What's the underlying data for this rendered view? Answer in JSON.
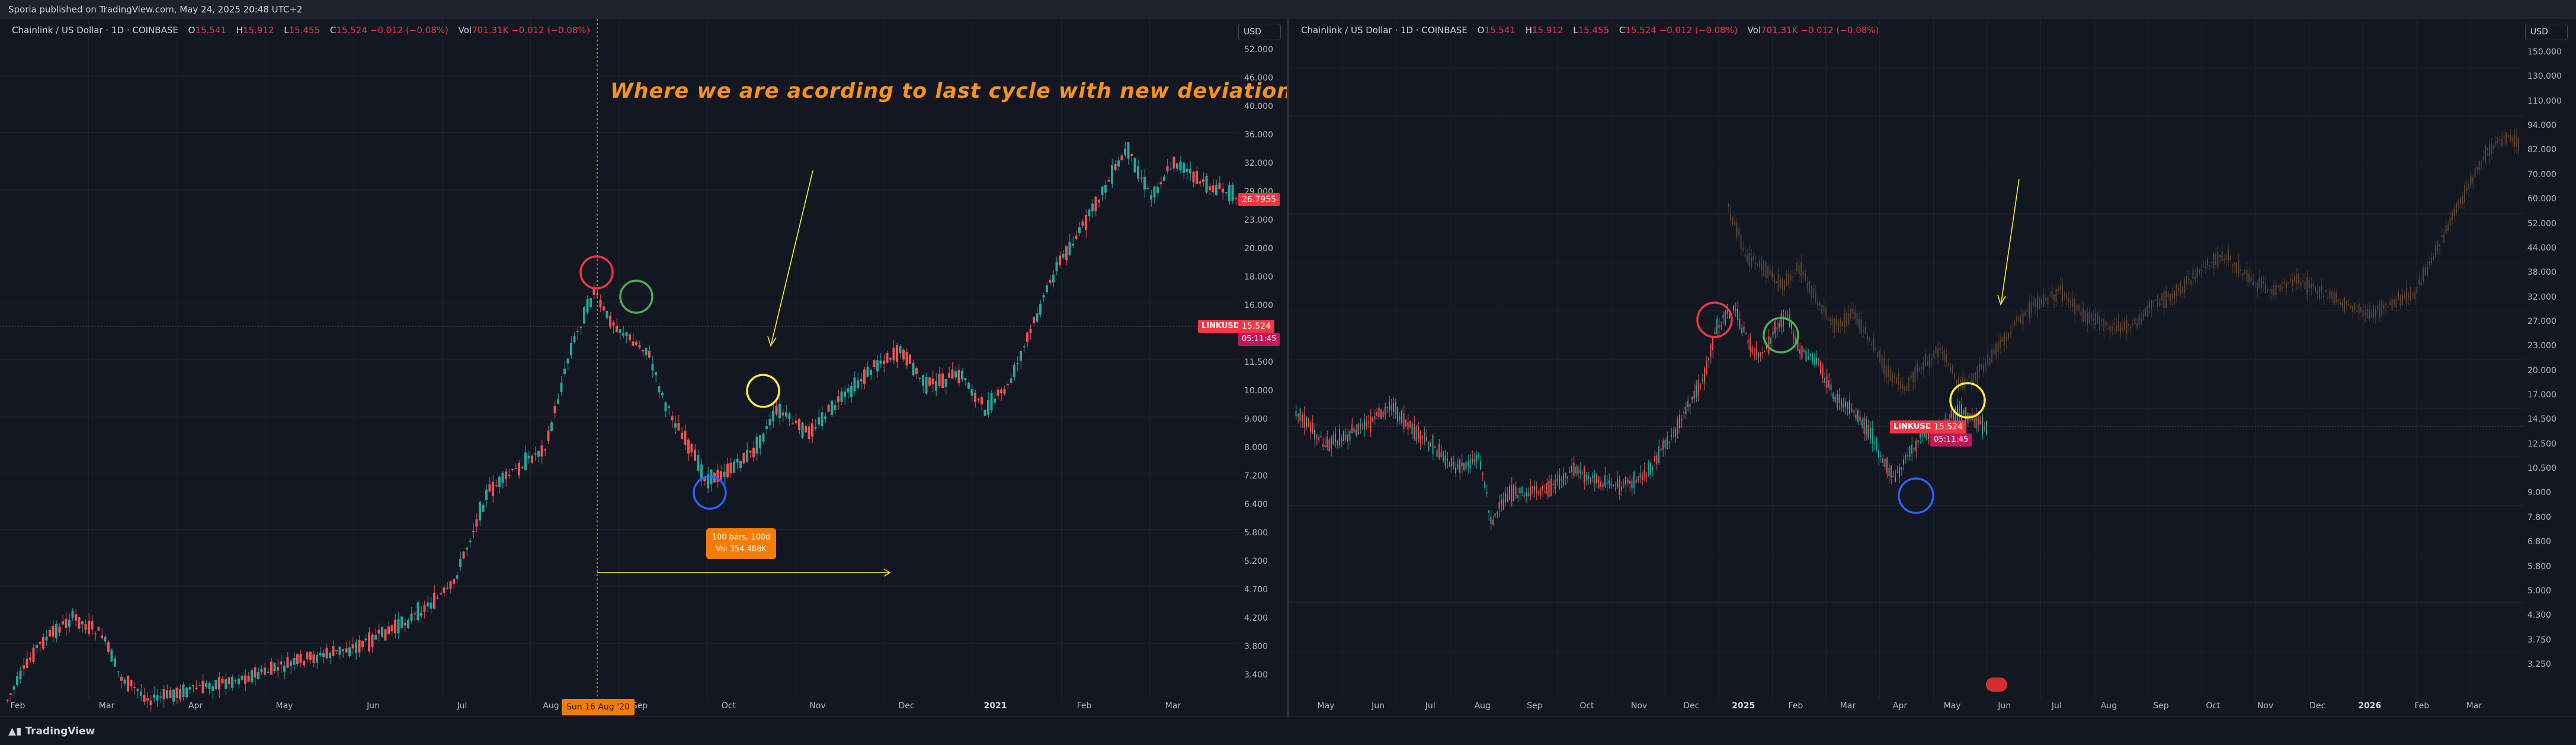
{
  "header": {
    "published_text": "Sporia published on TradingView.com, May 24, 2025 20:48 UTC+2"
  },
  "left_chart": {
    "symbol": "Chainlink / US Dollar · 1D · COINBASE",
    "ohlc": {
      "o_label": "O",
      "o": "15.541",
      "h_label": "H",
      "h": "15.912",
      "l_label": "L",
      "l": "15.455",
      "c_label": "C",
      "c": "15.524 −0.012 (−0.08%)",
      "vol_label": "Vol",
      "vol": "701.31K −0.012 (−0.08%)"
    },
    "currency": "USD",
    "y_ticks": [
      "52.000",
      "46.000",
      "40.000",
      "36.000",
      "32.000",
      "29.000",
      "23.000",
      "20.000",
      "18.000",
      "16.000",
      "13.000",
      "11.500",
      "10.000",
      "9.000",
      "8.000",
      "7.200",
      "6.400",
      "5.800",
      "5.200",
      "4.700",
      "4.200",
      "3.800",
      "3.400"
    ],
    "x_ticks": [
      "Feb",
      "Mar",
      "Apr",
      "May",
      "Jun",
      "Jul",
      "Aug",
      "Sep",
      "Oct",
      "Nov",
      "Dec",
      "2021",
      "Feb",
      "Mar"
    ],
    "annotation": "Where we are acording to last cycle with new deviation",
    "price_tag": "26.7955",
    "symbol_tag": "LINKUSD",
    "last_price": "15.524",
    "countdown": "05:11:45",
    "measure_line1": "100 bars, 100d",
    "measure_line2": "Vol 354.488K",
    "date_badge": "Sun 16 Aug '20",
    "circles": [
      {
        "color": "#f23645",
        "label": "red"
      },
      {
        "color": "#4caf50",
        "label": "green"
      },
      {
        "color": "#ffeb3b",
        "label": "yellow"
      },
      {
        "color": "#2962ff",
        "label": "blue"
      }
    ]
  },
  "right_chart": {
    "symbol": "Chainlink / US Dollar · 1D · COINBASE",
    "ohlc": {
      "o_label": "O",
      "o": "15.541",
      "h_label": "H",
      "h": "15.912",
      "l_label": "L",
      "l": "15.455",
      "c_label": "C",
      "c": "15.524 −0.012 (−0.08%)",
      "vol_label": "Vol",
      "vol": "701.31K −0.012 (−0.08%)"
    },
    "currency": "USD",
    "y_ticks": [
      "150.000",
      "130.000",
      "110.000",
      "94.000",
      "82.000",
      "70.000",
      "60.000",
      "52.000",
      "44.000",
      "38.000",
      "32.000",
      "27.000",
      "23.000",
      "20.000",
      "17.000",
      "14.500",
      "12.500",
      "10.500",
      "9.000",
      "7.800",
      "6.800",
      "5.800",
      "5.000",
      "4.300",
      "3.750",
      "3.250"
    ],
    "x_ticks": [
      "May",
      "Jun",
      "Jul",
      "Aug",
      "Sep",
      "Oct",
      "Nov",
      "Dec",
      "2025",
      "Feb",
      "Mar",
      "Apr",
      "May",
      "Jun",
      "Jul",
      "Aug",
      "Sep",
      "Oct",
      "Nov",
      "Dec",
      "2026",
      "Feb",
      "Mar"
    ],
    "symbol_tag": "LINKUSD",
    "last_price": "15.524",
    "countdown": "05:11:45"
  },
  "footer": {
    "logo_text": "TradingView",
    "logo_icon": "tradingview-logo-icon"
  },
  "colors": {
    "up": "#26a69a",
    "down": "#ef5350",
    "ghost": "#7a5a3a",
    "bg": "#131722",
    "grid": "#1e2230"
  }
}
